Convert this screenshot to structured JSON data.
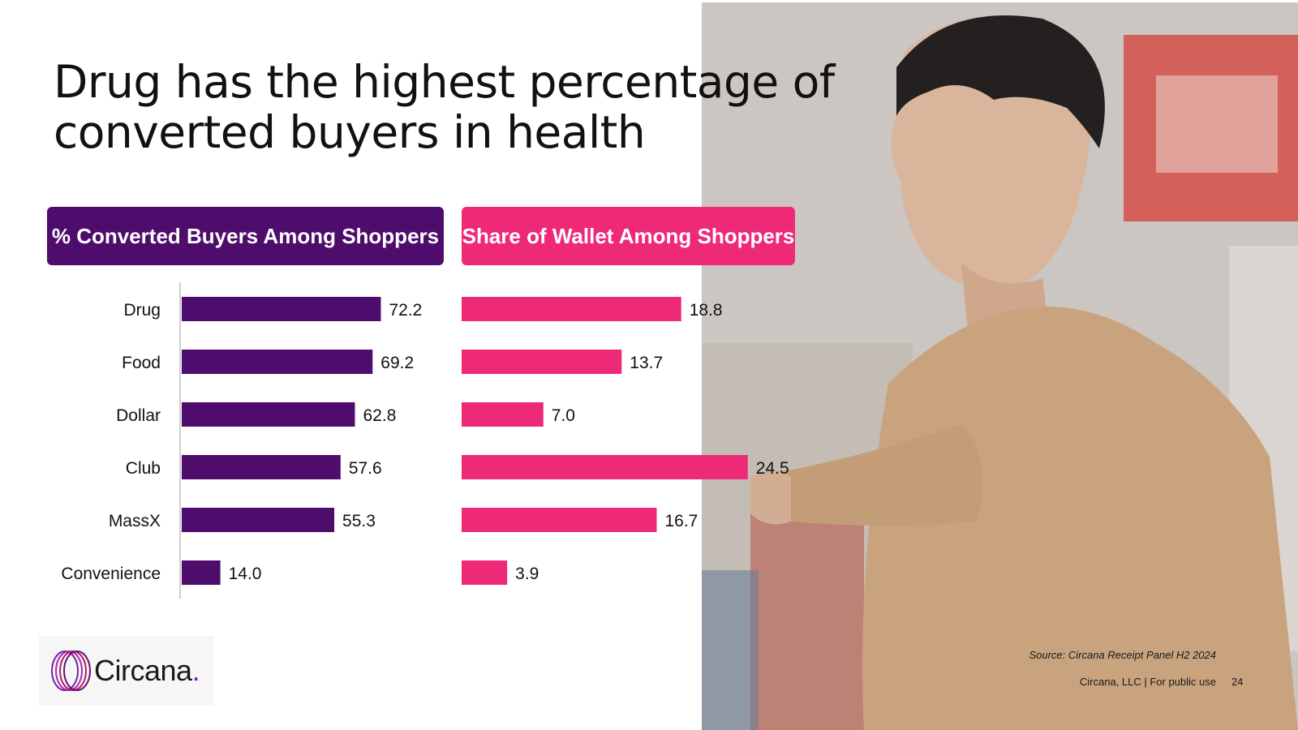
{
  "title": "Drug has the highest percentage of converted buyers in health",
  "left_header": "% Converted Buyers Among Shoppers",
  "right_header": "Share of Wallet Among Shoppers",
  "colors": {
    "left_bar": "#4e0d6c",
    "right_bar": "#ee2a78",
    "text": "#111111"
  },
  "chart_data": [
    {
      "type": "bar",
      "orientation": "horizontal",
      "title": "% Converted Buyers Among Shoppers",
      "categories": [
        "Drug",
        "Food",
        "Dollar",
        "Club",
        "MassX",
        "Convenience"
      ],
      "values": [
        72.2,
        69.2,
        62.8,
        57.6,
        55.3,
        14.0
      ],
      "value_labels": [
        "72.2",
        "69.2",
        "62.8",
        "57.6",
        "55.3",
        "14.0"
      ],
      "xlim": [
        0,
        80
      ],
      "grid": false
    },
    {
      "type": "bar",
      "orientation": "horizontal",
      "title": "Share of Wallet Among Shoppers",
      "categories": [
        "Drug",
        "Food",
        "Dollar",
        "Club",
        "MassX",
        "Convenience"
      ],
      "values": [
        18.8,
        13.7,
        7.0,
        24.5,
        16.7,
        3.9
      ],
      "value_labels": [
        "18.8",
        "13.7",
        "7.0",
        "24.5",
        "16.7",
        "3.9"
      ],
      "xlim": [
        0,
        30
      ],
      "grid": false
    }
  ],
  "logo": {
    "name": "Circana",
    "dot": "."
  },
  "source": "Source: Circana Receipt Panel H2 2024",
  "footer": "Circana, LLC |  For public use",
  "page_number": "24"
}
